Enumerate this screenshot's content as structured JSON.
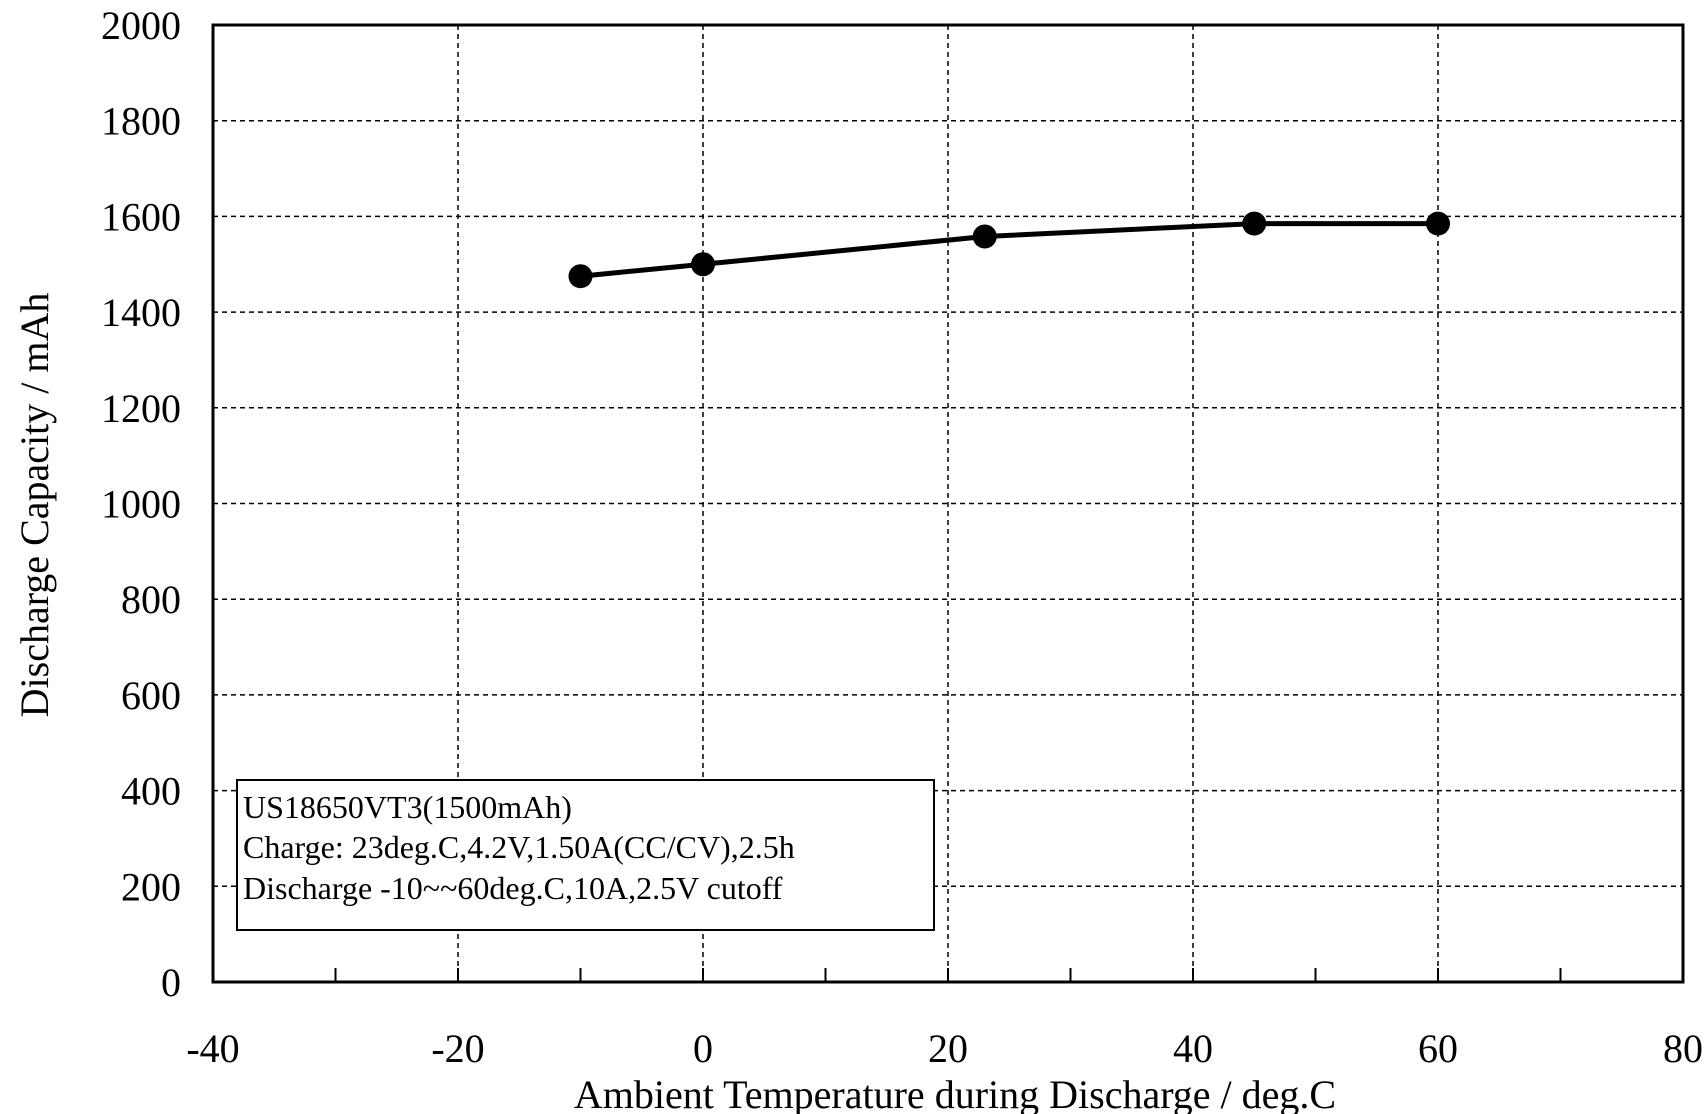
{
  "chart_data": {
    "type": "line",
    "title": "",
    "xlabel": "Ambient Temperature during Discharge  / deg.C",
    "ylabel": "Discharge Capacity / mAh",
    "xlim": [
      -40,
      80
    ],
    "ylim": [
      0,
      2000
    ],
    "xticks": [
      -40,
      -20,
      0,
      20,
      40,
      60,
      80
    ],
    "yticks": [
      0,
      200,
      400,
      600,
      800,
      1000,
      1200,
      1400,
      1600,
      1800,
      2000
    ],
    "xtick_labels": [
      "-40",
      "-20",
      "0",
      "20",
      "40",
      "60",
      "80"
    ],
    "ytick_labels": [
      "0",
      "200",
      "400",
      "600",
      "800",
      "1000",
      "1200",
      "1400",
      "1600",
      "1800",
      "2000"
    ],
    "grid": true,
    "marker": "circle",
    "series": [
      {
        "x": [
          -10,
          0,
          23,
          45,
          60
        ],
        "y": [
          1475,
          1500,
          1558,
          1585,
          1585
        ]
      }
    ],
    "annotation_lines": [
      "US18650VT3(1500mAh)",
      "Charge: 23deg.C,4.2V,1.50A(CC/CV),2.5h",
      "Discharge -10~~60deg.C,10A,2.5V cutoff"
    ],
    "colors": {
      "line": "#000000",
      "grid": "#000000",
      "background": "#ffffff"
    }
  }
}
